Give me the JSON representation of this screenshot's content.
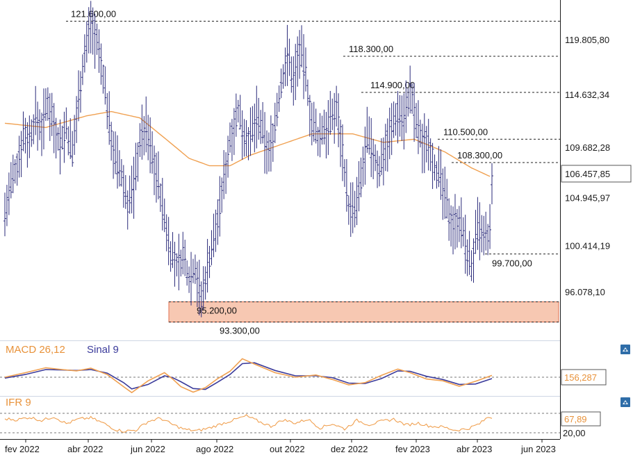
{
  "chart_data": [
    {
      "type": "bar",
      "subtype": "ohlc",
      "ylim": [
        93000,
        122700
      ],
      "y_ticks": [
        96078.1,
        100414.19,
        104945.97,
        109682.28,
        114632.34,
        119805.8
      ],
      "y_tick_labels": [
        "96.078,10",
        "100.414,19",
        "104.945,97",
        "109.682,28",
        "114.632,34",
        "119.805,80"
      ],
      "x_tick_labels": [
        "fev 2022",
        "abr 2022",
        "jun 2022",
        "ago 2022",
        "out 2022",
        "dez 2022",
        "fev 2023",
        "abr 2023",
        "jun 2023"
      ],
      "last_price_label": "106.457,85",
      "last_price": 106457.85,
      "levels": [
        {
          "label": "121.600,00",
          "value": 121600
        },
        {
          "label": "118.300,00",
          "value": 118300
        },
        {
          "label": "114.900,00",
          "value": 114900
        },
        {
          "label": "110.500,00",
          "value": 110500
        },
        {
          "label": "108.300,00",
          "value": 108300
        },
        {
          "label": "99.700,00",
          "value": 99700
        },
        {
          "label": "95.200,00",
          "value": 95200
        },
        {
          "label": "93.300,00",
          "value": 93300
        }
      ],
      "support_zone": [
        93300,
        95200
      ],
      "price_path": [
        [
          0,
          103500
        ],
        [
          3,
          106000
        ],
        [
          6,
          108000
        ],
        [
          9,
          111000
        ],
        [
          12,
          110500
        ],
        [
          15,
          112500
        ],
        [
          18,
          111500
        ],
        [
          21,
          114000
        ],
        [
          24,
          112000
        ],
        [
          27,
          110000
        ],
        [
          30,
          111500
        ],
        [
          33,
          109000
        ],
        [
          36,
          114500
        ],
        [
          39,
          118500
        ],
        [
          42,
          121600
        ],
        [
          45,
          119500
        ],
        [
          48,
          116500
        ],
        [
          51,
          112000
        ],
        [
          54,
          108500
        ],
        [
          57,
          107000
        ],
        [
          60,
          104500
        ],
        [
          63,
          106000
        ],
        [
          66,
          110500
        ],
        [
          69,
          111500
        ],
        [
          72,
          109000
        ],
        [
          75,
          106500
        ],
        [
          78,
          103000
        ],
        [
          81,
          100000
        ],
        [
          84,
          98500
        ],
        [
          87,
          99500
        ],
        [
          90,
          97500
        ],
        [
          93,
          98500
        ],
        [
          96,
          95200
        ],
        [
          99,
          98500
        ],
        [
          102,
          101000
        ],
        [
          105,
          104000
        ],
        [
          108,
          108000
        ],
        [
          111,
          111500
        ],
        [
          114,
          113000
        ],
        [
          117,
          111000
        ],
        [
          120,
          110500
        ],
        [
          123,
          112500
        ],
        [
          126,
          111000
        ],
        [
          129,
          109000
        ],
        [
          132,
          112000
        ],
        [
          135,
          115500
        ],
        [
          138,
          118500
        ],
        [
          141,
          116000
        ],
        [
          144,
          119000
        ],
        [
          147,
          116500
        ],
        [
          150,
          112000
        ],
        [
          153,
          110500
        ],
        [
          156,
          111500
        ],
        [
          159,
          112000
        ],
        [
          162,
          113500
        ],
        [
          165,
          109500
        ],
        [
          168,
          104000
        ],
        [
          171,
          103500
        ],
        [
          174,
          106500
        ],
        [
          177,
          110500
        ],
        [
          180,
          109000
        ],
        [
          183,
          107500
        ],
        [
          186,
          110000
        ],
        [
          189,
          111500
        ],
        [
          192,
          113000
        ],
        [
          195,
          112500
        ],
        [
          198,
          114900
        ],
        [
          201,
          112000
        ],
        [
          204,
          110000
        ],
        [
          207,
          110500
        ],
        [
          210,
          108000
        ],
        [
          213,
          106500
        ],
        [
          216,
          104000
        ],
        [
          219,
          102500
        ],
        [
          222,
          103000
        ],
        [
          225,
          100500
        ],
        [
          228,
          98500
        ],
        [
          231,
          102000
        ],
        [
          234,
          101000
        ],
        [
          237,
          101500
        ],
        [
          238,
          106457.85
        ]
      ],
      "moving_average": [
        [
          0,
          112000
        ],
        [
          20,
          111600
        ],
        [
          40,
          112700
        ],
        [
          52,
          113100
        ],
        [
          66,
          112500
        ],
        [
          80,
          110300
        ],
        [
          90,
          108700
        ],
        [
          100,
          108000
        ],
        [
          110,
          108000
        ],
        [
          120,
          109000
        ],
        [
          135,
          110000
        ],
        [
          150,
          111000
        ],
        [
          170,
          111000
        ],
        [
          185,
          110200
        ],
        [
          200,
          110500
        ],
        [
          215,
          109300
        ],
        [
          228,
          107800
        ],
        [
          237,
          107000
        ]
      ]
    },
    {
      "type": "line",
      "title": "MACD 26,12",
      "signal_title": "Sinal 9",
      "value_label": "156,287",
      "ylim": [
        -3000,
        2500
      ],
      "series": [
        {
          "name": "MACD 26,12",
          "color": "#f0a050",
          "points": [
            [
              0,
              0
            ],
            [
              10,
              500
            ],
            [
              20,
              1050
            ],
            [
              28,
              850
            ],
            [
              35,
              700
            ],
            [
              42,
              1000
            ],
            [
              50,
              300
            ],
            [
              58,
              -1050
            ],
            [
              62,
              -1700
            ],
            [
              70,
              -400
            ],
            [
              78,
              500
            ],
            [
              82,
              -200
            ],
            [
              86,
              -1050
            ],
            [
              92,
              -1650
            ],
            [
              98,
              -1150
            ],
            [
              104,
              -150
            ],
            [
              110,
              650
            ],
            [
              116,
              2050
            ],
            [
              122,
              1450
            ],
            [
              132,
              500
            ],
            [
              142,
              0
            ],
            [
              152,
              250
            ],
            [
              160,
              -250
            ],
            [
              168,
              -850
            ],
            [
              176,
              -600
            ],
            [
              184,
              200
            ],
            [
              192,
              900
            ],
            [
              198,
              500
            ],
            [
              206,
              -200
            ],
            [
              214,
              -400
            ],
            [
              222,
              -1000
            ],
            [
              230,
              -450
            ],
            [
              238,
              200
            ]
          ]
        },
        {
          "name": "Sinal 9",
          "color": "#3a3a9a",
          "points": [
            [
              0,
              -100
            ],
            [
              10,
              300
            ],
            [
              20,
              850
            ],
            [
              28,
              800
            ],
            [
              35,
              750
            ],
            [
              42,
              850
            ],
            [
              50,
              450
            ],
            [
              58,
              -600
            ],
            [
              62,
              -1300
            ],
            [
              70,
              -800
            ],
            [
              78,
              150
            ],
            [
              82,
              -50
            ],
            [
              86,
              -500
            ],
            [
              92,
              -1250
            ],
            [
              98,
              -1350
            ],
            [
              104,
              -550
            ],
            [
              110,
              300
            ],
            [
              116,
              1500
            ],
            [
              122,
              1600
            ],
            [
              132,
              750
            ],
            [
              142,
              150
            ],
            [
              152,
              150
            ],
            [
              160,
              -50
            ],
            [
              168,
              -650
            ],
            [
              176,
              -700
            ],
            [
              184,
              -150
            ],
            [
              192,
              700
            ],
            [
              198,
              650
            ],
            [
              206,
              100
            ],
            [
              214,
              -250
            ],
            [
              222,
              -800
            ],
            [
              230,
              -750
            ],
            [
              238,
              -150
            ]
          ]
        }
      ]
    },
    {
      "type": "line",
      "title": "IFR 9",
      "value_label": "67,89",
      "ylim": [
        20,
        80
      ],
      "y_tick_labels": [
        "20,00"
      ],
      "series": [
        {
          "name": "IFR 9",
          "color": "#f0a050",
          "points": [
            [
              0,
              63
            ],
            [
              6,
              60
            ],
            [
              12,
              68
            ],
            [
              18,
              58
            ],
            [
              24,
              70
            ],
            [
              30,
              48
            ],
            [
              36,
              62
            ],
            [
              42,
              66
            ],
            [
              48,
              50
            ],
            [
              54,
              30
            ],
            [
              58,
              25
            ],
            [
              64,
              28
            ],
            [
              70,
              55
            ],
            [
              76,
              65
            ],
            [
              82,
              45
            ],
            [
              88,
              30
            ],
            [
              94,
              26
            ],
            [
              100,
              35
            ],
            [
              106,
              48
            ],
            [
              112,
              60
            ],
            [
              118,
              72
            ],
            [
              124,
              55
            ],
            [
              130,
              40
            ],
            [
              136,
              60
            ],
            [
              142,
              50
            ],
            [
              148,
              62
            ],
            [
              154,
              35
            ],
            [
              160,
              48
            ],
            [
              166,
              32
            ],
            [
              172,
              58
            ],
            [
              178,
              45
            ],
            [
              184,
              55
            ],
            [
              190,
              62
            ],
            [
              196,
              44
            ],
            [
              202,
              50
            ],
            [
              208,
              40
            ],
            [
              214,
              38
            ],
            [
              220,
              28
            ],
            [
              226,
              32
            ],
            [
              232,
              48
            ],
            [
              236,
              68
            ],
            [
              238,
              67.89
            ]
          ]
        }
      ]
    }
  ],
  "icon_names": [
    "settings-icon",
    "settings-icon"
  ]
}
